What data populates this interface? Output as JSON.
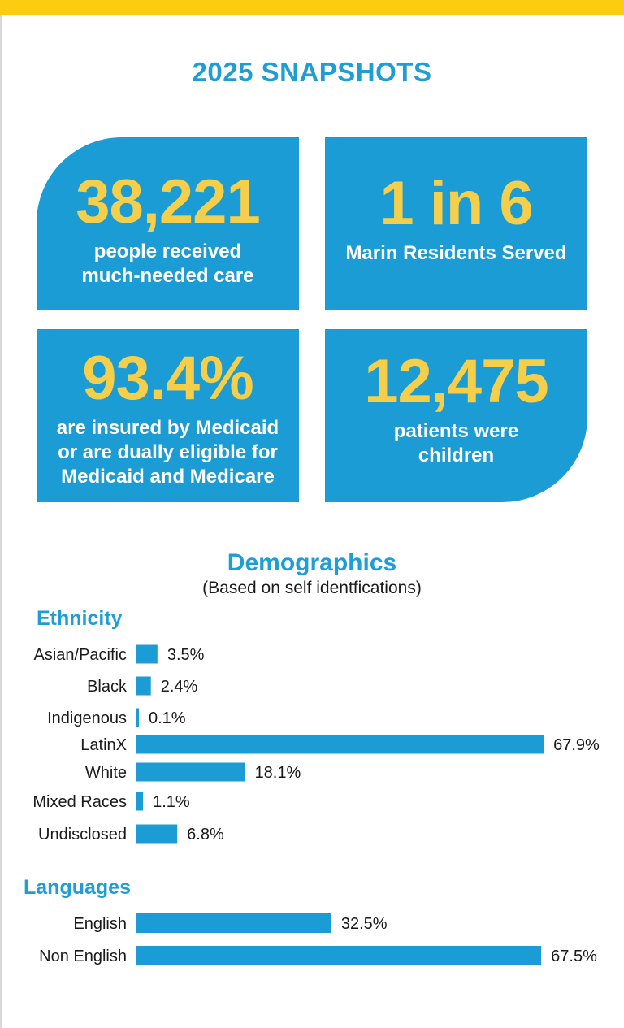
{
  "header": {
    "title": "2025 SNAPSHOTS"
  },
  "cards": [
    {
      "value": "38,221",
      "line1": "people received",
      "line2": "much-needed care",
      "line3": ""
    },
    {
      "value": "1 in 6",
      "line1": "Marin Residents Served",
      "line2": "",
      "line3": ""
    },
    {
      "value": "93.4%",
      "line1": "are insured by Medicaid",
      "line2": "or are dually eligible for",
      "line3": "Medicaid and Medicare"
    },
    {
      "value": "12,475",
      "line1": "patients were",
      "line2": "children",
      "line3": ""
    }
  ],
  "demographics": {
    "title": "Demographics",
    "subtitle": "(Based on self identfications)"
  },
  "colors": {
    "accent": "#219dd5",
    "card": "#1c9cd5",
    "highlight": "#f5cf49",
    "topbar": "#fbcc0f"
  },
  "chart_data": [
    {
      "type": "bar",
      "orientation": "horizontal",
      "title": "Ethnicity",
      "categories": [
        "Asian/Pacific",
        "Black",
        "Indigenous",
        "LatinX",
        "White",
        "Mixed Races",
        "Undisclosed"
      ],
      "values": [
        3.5,
        2.4,
        0.1,
        67.9,
        18.1,
        1.1,
        6.8
      ],
      "value_labels": [
        "3.5%",
        "2.4%",
        "0.1%",
        "67.9%",
        "18.1%",
        "1.1%",
        "6.8%"
      ],
      "unit": "%",
      "xlim": [
        0,
        70
      ],
      "grid": false,
      "color": "#1c9cd5"
    },
    {
      "type": "bar",
      "orientation": "horizontal",
      "title": "Languages",
      "categories": [
        "English",
        "Non English"
      ],
      "values": [
        32.5,
        67.5
      ],
      "value_labels": [
        "32.5%",
        "67.5%"
      ],
      "unit": "%",
      "xlim": [
        0,
        70
      ],
      "grid": false,
      "color": "#1c9cd5"
    }
  ]
}
